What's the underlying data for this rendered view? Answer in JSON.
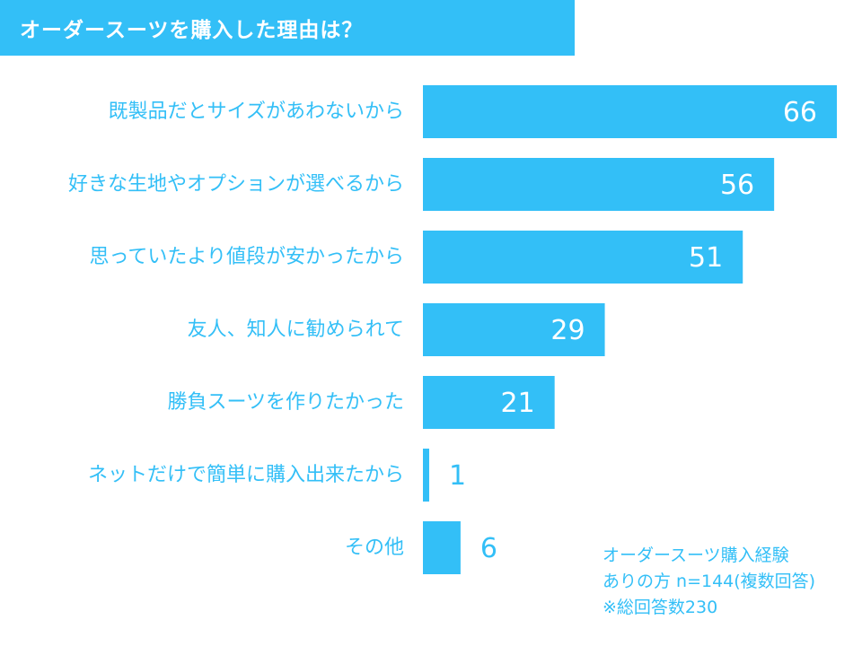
{
  "title": "オーダースーツを購入した理由は？",
  "colors": {
    "accent": "#33bff7",
    "label_text": "#33bff7",
    "value_text_inside": "#ffffff",
    "value_text_outside": "#33bff7"
  },
  "chart_data": {
    "type": "bar",
    "orientation": "horizontal",
    "categories": [
      "既製品だとサイズがあわないから",
      "好きな生地やオプションが選べるから",
      "思っていたより値段が安かったから",
      "友人、知人に勧められて",
      "勝負スーツを作りたかった",
      "ネットだけで簡単に購入出来たから",
      "その他"
    ],
    "values": [
      66,
      56,
      51,
      29,
      21,
      1,
      6
    ],
    "xlim": [
      0,
      66
    ],
    "data_labels": true
  },
  "note": {
    "line1": "オーダースーツ購入経験",
    "line2": "ありの方 n=144(複数回答)",
    "line3": "※総回答数230"
  }
}
